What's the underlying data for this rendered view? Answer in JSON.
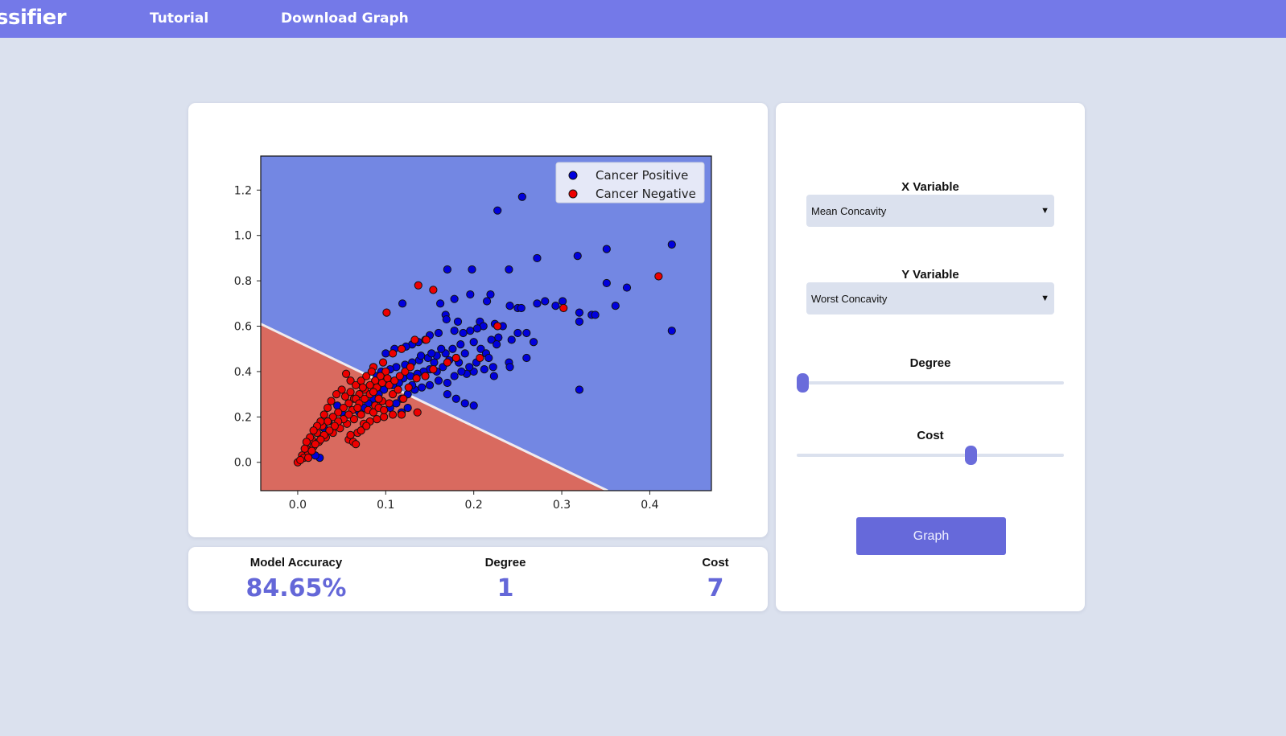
{
  "topbar": {
    "brand": "assifier",
    "nav": [
      "Tutorial",
      "Download Graph"
    ]
  },
  "stats": {
    "accuracy_label": "Model Accuracy",
    "accuracy_value": "84.65%",
    "degree_label": "Degree",
    "degree_value": "1",
    "cost_label": "Cost",
    "cost_value": "7"
  },
  "controls": {
    "x_label": "X Variable",
    "x_value": "Mean Concavity",
    "y_label": "Y Variable",
    "y_value": "Worst Concavity",
    "degree_label": "Degree",
    "degree_slider": 0.0,
    "cost_label": "Cost",
    "cost_slider": 0.66,
    "graph_button": "Graph"
  },
  "colors": {
    "accent": "#6669da",
    "positive_region": "#7387e3",
    "negative_region": "#d96a5f",
    "positive_point": "#0000dd",
    "negative_point": "#ee0000"
  },
  "chart_data": {
    "type": "scatter",
    "xlim": [
      -0.042,
      0.47
    ],
    "ylim": [
      -0.125,
      1.35
    ],
    "xticks": [
      "0.0",
      "0.1",
      "0.2",
      "0.3",
      "0.4"
    ],
    "yticks": [
      "0.0",
      "0.2",
      "0.4",
      "0.6",
      "0.8",
      "1.0",
      "1.2"
    ],
    "legend_position": "top-right",
    "boundary": {
      "description_free": true,
      "points": [
        [
          -0.042,
          0.61
        ],
        [
          0.352,
          -0.125
        ]
      ]
    },
    "series": [
      {
        "name": "Cancer Positive",
        "points": [
          [
            0.255,
            1.17
          ],
          [
            0.227,
            1.11
          ],
          [
            0.425,
            0.96
          ],
          [
            0.351,
            0.94
          ],
          [
            0.318,
            0.91
          ],
          [
            0.272,
            0.9
          ],
          [
            0.17,
            0.85
          ],
          [
            0.198,
            0.85
          ],
          [
            0.24,
            0.85
          ],
          [
            0.351,
            0.79
          ],
          [
            0.374,
            0.77
          ],
          [
            0.219,
            0.74
          ],
          [
            0.196,
            0.74
          ],
          [
            0.178,
            0.72
          ],
          [
            0.162,
            0.7
          ],
          [
            0.119,
            0.7
          ],
          [
            0.215,
            0.71
          ],
          [
            0.272,
            0.7
          ],
          [
            0.281,
            0.71
          ],
          [
            0.293,
            0.69
          ],
          [
            0.301,
            0.71
          ],
          [
            0.241,
            0.69
          ],
          [
            0.25,
            0.68
          ],
          [
            0.254,
            0.68
          ],
          [
            0.32,
            0.66
          ],
          [
            0.334,
            0.65
          ],
          [
            0.338,
            0.65
          ],
          [
            0.361,
            0.69
          ],
          [
            0.32,
            0.62
          ],
          [
            0.168,
            0.65
          ],
          [
            0.169,
            0.63
          ],
          [
            0.182,
            0.62
          ],
          [
            0.207,
            0.62
          ],
          [
            0.224,
            0.61
          ],
          [
            0.233,
            0.6
          ],
          [
            0.211,
            0.6
          ],
          [
            0.26,
            0.57
          ],
          [
            0.25,
            0.57
          ],
          [
            0.268,
            0.53
          ],
          [
            0.243,
            0.54
          ],
          [
            0.228,
            0.55
          ],
          [
            0.22,
            0.54
          ],
          [
            0.204,
            0.59
          ],
          [
            0.196,
            0.58
          ],
          [
            0.188,
            0.57
          ],
          [
            0.178,
            0.58
          ],
          [
            0.16,
            0.57
          ],
          [
            0.15,
            0.56
          ],
          [
            0.145,
            0.54
          ],
          [
            0.137,
            0.53
          ],
          [
            0.13,
            0.52
          ],
          [
            0.123,
            0.51
          ],
          [
            0.11,
            0.5
          ],
          [
            0.1,
            0.48
          ],
          [
            0.185,
            0.52
          ],
          [
            0.176,
            0.5
          ],
          [
            0.168,
            0.48
          ],
          [
            0.158,
            0.47
          ],
          [
            0.148,
            0.46
          ],
          [
            0.138,
            0.45
          ],
          [
            0.13,
            0.44
          ],
          [
            0.122,
            0.43
          ],
          [
            0.112,
            0.42
          ],
          [
            0.105,
            0.41
          ],
          [
            0.095,
            0.4
          ],
          [
            0.09,
            0.38
          ],
          [
            0.208,
            0.5
          ],
          [
            0.214,
            0.48
          ],
          [
            0.217,
            0.46
          ],
          [
            0.222,
            0.42
          ],
          [
            0.212,
            0.41
          ],
          [
            0.2,
            0.4
          ],
          [
            0.192,
            0.39
          ],
          [
            0.183,
            0.44
          ],
          [
            0.172,
            0.45
          ],
          [
            0.165,
            0.42
          ],
          [
            0.158,
            0.4
          ],
          [
            0.15,
            0.41
          ],
          [
            0.143,
            0.4
          ],
          [
            0.136,
            0.39
          ],
          [
            0.128,
            0.38
          ],
          [
            0.12,
            0.37
          ],
          [
            0.115,
            0.35
          ],
          [
            0.108,
            0.34
          ],
          [
            0.16,
            0.36
          ],
          [
            0.17,
            0.35
          ],
          [
            0.178,
            0.38
          ],
          [
            0.186,
            0.4
          ],
          [
            0.195,
            0.42
          ],
          [
            0.203,
            0.44
          ],
          [
            0.18,
            0.28
          ],
          [
            0.2,
            0.25
          ],
          [
            0.19,
            0.26
          ],
          [
            0.15,
            0.34
          ],
          [
            0.141,
            0.33
          ],
          [
            0.133,
            0.32
          ],
          [
            0.125,
            0.3
          ],
          [
            0.118,
            0.28
          ],
          [
            0.112,
            0.26
          ],
          [
            0.105,
            0.24
          ],
          [
            0.098,
            0.32
          ],
          [
            0.092,
            0.3
          ],
          [
            0.086,
            0.28
          ],
          [
            0.08,
            0.26
          ],
          [
            0.075,
            0.24
          ],
          [
            0.07,
            0.22
          ],
          [
            0.24,
            0.44
          ],
          [
            0.241,
            0.42
          ],
          [
            0.223,
            0.38
          ],
          [
            0.26,
            0.46
          ],
          [
            0.32,
            0.32
          ],
          [
            0.425,
            0.58
          ],
          [
            0.226,
            0.52
          ],
          [
            0.17,
            0.3
          ],
          [
            0.13,
            0.34
          ],
          [
            0.145,
            0.38
          ],
          [
            0.155,
            0.44
          ],
          [
            0.163,
            0.5
          ],
          [
            0.152,
            0.48
          ],
          [
            0.14,
            0.47
          ],
          [
            0.2,
            0.53
          ],
          [
            0.19,
            0.48
          ],
          [
            0.18,
            0.46
          ],
          [
            0.05,
            0.22
          ],
          [
            0.04,
            0.2
          ],
          [
            0.035,
            0.18
          ],
          [
            0.03,
            0.15
          ],
          [
            0.025,
            0.02
          ],
          [
            0.02,
            0.03
          ],
          [
            0.045,
            0.25
          ],
          [
            0.118,
            0.22
          ],
          [
            0.125,
            0.24
          ]
        ]
      },
      {
        "name": "Cancer Negative",
        "points": [
          [
            0.41,
            0.82
          ],
          [
            0.137,
            0.78
          ],
          [
            0.154,
            0.76
          ],
          [
            0.101,
            0.66
          ],
          [
            0.302,
            0.68
          ],
          [
            0.227,
            0.6
          ],
          [
            0.146,
            0.54
          ],
          [
            0.133,
            0.54
          ],
          [
            0.118,
            0.5
          ],
          [
            0.108,
            0.48
          ],
          [
            0.097,
            0.44
          ],
          [
            0.086,
            0.42
          ],
          [
            0.055,
            0.39
          ],
          [
            0.207,
            0.46
          ],
          [
            0.18,
            0.46
          ],
          [
            0.17,
            0.44
          ],
          [
            0.154,
            0.41
          ],
          [
            0.145,
            0.38
          ],
          [
            0.135,
            0.37
          ],
          [
            0.126,
            0.33
          ],
          [
            0.136,
            0.22
          ],
          [
            0.118,
            0.21
          ],
          [
            0.108,
            0.21
          ],
          [
            0.098,
            0.2
          ],
          [
            0.09,
            0.19
          ],
          [
            0.082,
            0.18
          ],
          [
            0.075,
            0.17
          ],
          [
            0.068,
            0.13
          ],
          [
            0.058,
            0.1
          ],
          [
            0.063,
            0.09
          ],
          [
            0.1,
            0.4
          ],
          [
            0.094,
            0.38
          ],
          [
            0.088,
            0.36
          ],
          [
            0.082,
            0.34
          ],
          [
            0.076,
            0.32
          ],
          [
            0.07,
            0.3
          ],
          [
            0.064,
            0.28
          ],
          [
            0.058,
            0.26
          ],
          [
            0.052,
            0.24
          ],
          [
            0.046,
            0.22
          ],
          [
            0.04,
            0.2
          ],
          [
            0.034,
            0.18
          ],
          [
            0.028,
            0.16
          ],
          [
            0.022,
            0.13
          ],
          [
            0.016,
            0.1
          ],
          [
            0.01,
            0.06
          ],
          [
            0.005,
            0.03
          ],
          [
            0.0,
            0.0
          ],
          [
            0.06,
            0.36
          ],
          [
            0.066,
            0.34
          ],
          [
            0.072,
            0.36
          ],
          [
            0.078,
            0.38
          ],
          [
            0.084,
            0.4
          ],
          [
            0.09,
            0.33
          ],
          [
            0.096,
            0.35
          ],
          [
            0.102,
            0.37
          ],
          [
            0.108,
            0.3
          ],
          [
            0.114,
            0.32
          ],
          [
            0.12,
            0.28
          ],
          [
            0.104,
            0.26
          ],
          [
            0.096,
            0.27
          ],
          [
            0.088,
            0.25
          ],
          [
            0.08,
            0.23
          ],
          [
            0.072,
            0.21
          ],
          [
            0.064,
            0.19
          ],
          [
            0.056,
            0.17
          ],
          [
            0.048,
            0.15
          ],
          [
            0.04,
            0.13
          ],
          [
            0.032,
            0.11
          ],
          [
            0.024,
            0.09
          ],
          [
            0.018,
            0.07
          ],
          [
            0.012,
            0.04
          ],
          [
            0.007,
            0.02
          ],
          [
            0.003,
            0.01
          ],
          [
            0.05,
            0.32
          ],
          [
            0.044,
            0.3
          ],
          [
            0.038,
            0.27
          ],
          [
            0.034,
            0.24
          ],
          [
            0.03,
            0.21
          ],
          [
            0.026,
            0.18
          ],
          [
            0.022,
            0.16
          ],
          [
            0.018,
            0.14
          ],
          [
            0.014,
            0.11
          ],
          [
            0.01,
            0.09
          ],
          [
            0.008,
            0.06
          ],
          [
            0.054,
            0.29
          ],
          [
            0.06,
            0.31
          ],
          [
            0.066,
            0.28
          ],
          [
            0.07,
            0.26
          ],
          [
            0.076,
            0.28
          ],
          [
            0.082,
            0.3
          ],
          [
            0.086,
            0.22
          ],
          [
            0.092,
            0.24
          ],
          [
            0.098,
            0.23
          ],
          [
            0.104,
            0.34
          ],
          [
            0.11,
            0.36
          ],
          [
            0.116,
            0.38
          ],
          [
            0.122,
            0.4
          ],
          [
            0.128,
            0.42
          ],
          [
            0.062,
            0.23
          ],
          [
            0.058,
            0.21
          ],
          [
            0.052,
            0.19
          ],
          [
            0.046,
            0.18
          ],
          [
            0.042,
            0.16
          ],
          [
            0.036,
            0.14
          ],
          [
            0.03,
            0.12
          ],
          [
            0.026,
            0.1
          ],
          [
            0.02,
            0.08
          ],
          [
            0.016,
            0.05
          ],
          [
            0.012,
            0.02
          ],
          [
            0.072,
            0.14
          ],
          [
            0.078,
            0.16
          ],
          [
            0.066,
            0.08
          ],
          [
            0.06,
            0.12
          ],
          [
            0.092,
            0.28
          ],
          [
            0.086,
            0.31
          ],
          [
            0.074,
            0.33
          ],
          [
            0.068,
            0.24
          ]
        ]
      }
    ]
  }
}
